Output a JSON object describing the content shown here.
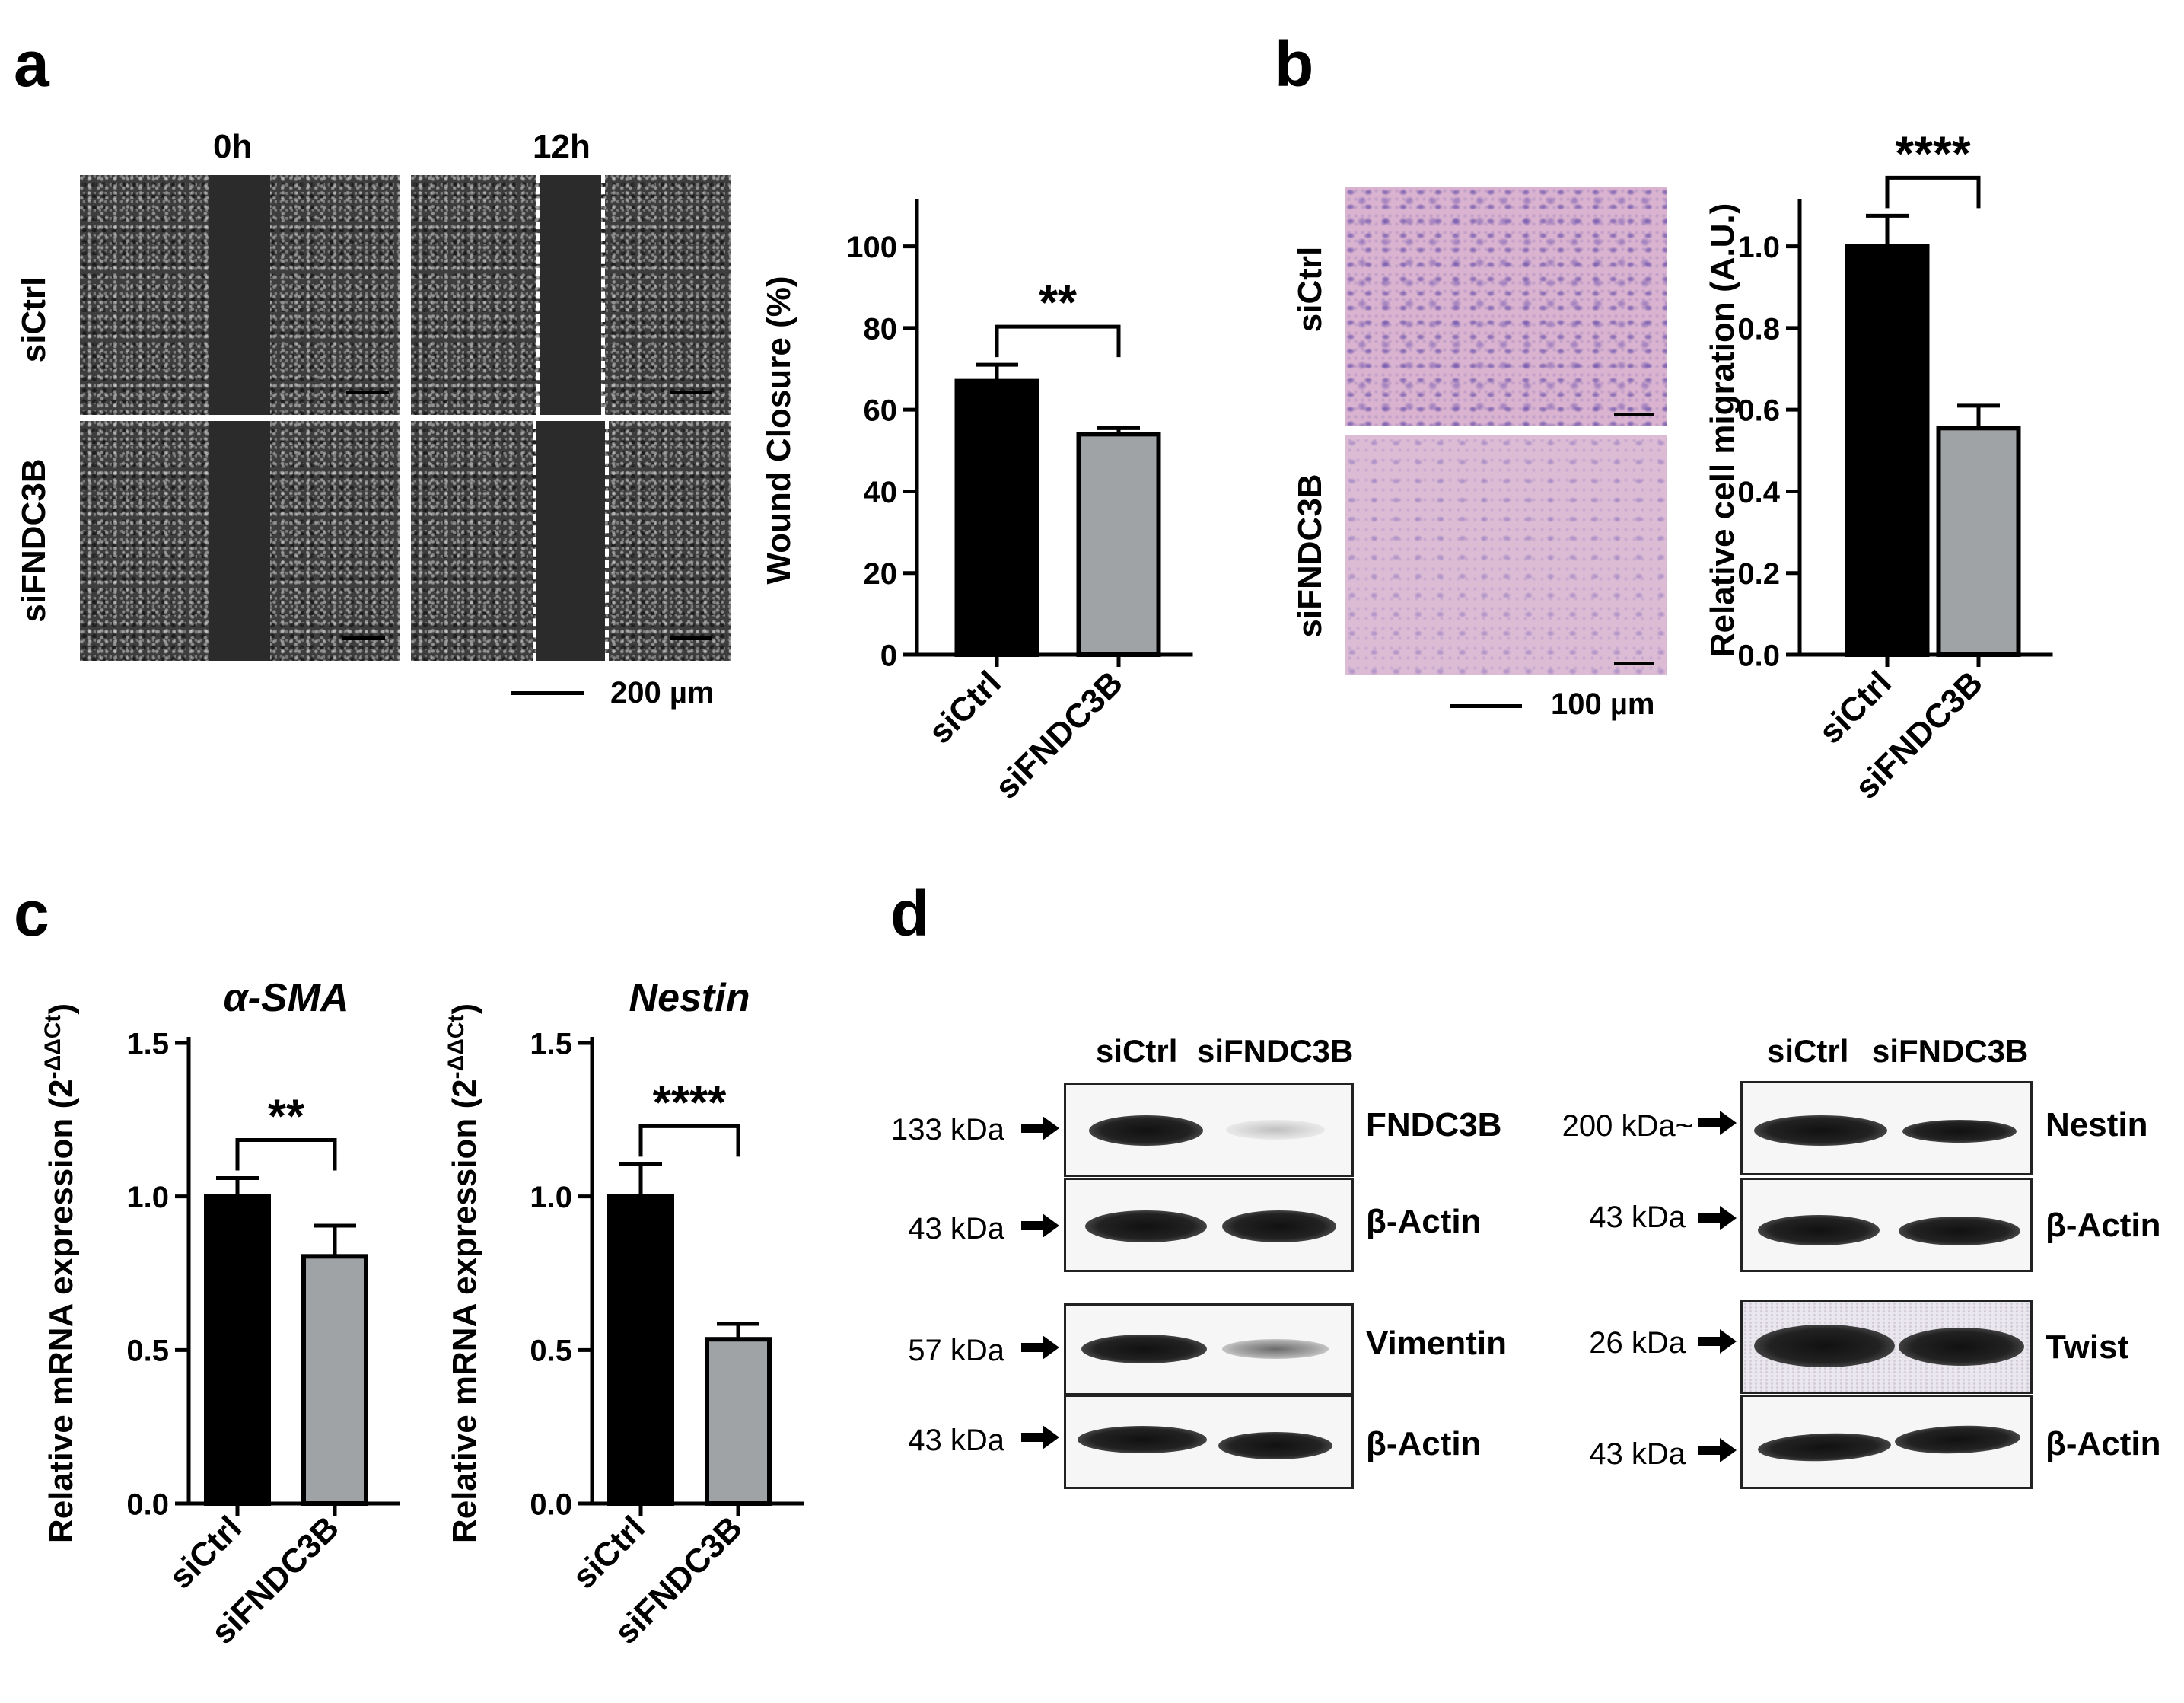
{
  "panels": {
    "a": {
      "letter": "a",
      "time_labels": [
        "0h",
        "12h"
      ],
      "row_labels": [
        "siCtrl",
        "siFNDC3B"
      ],
      "scale_text": "200 µm"
    },
    "b": {
      "letter": "b",
      "row_labels": [
        "siCtrl",
        "siFNDC3B"
      ],
      "scale_text": "100 µm"
    },
    "c": {
      "letter": "c"
    },
    "d": {
      "letter": "d",
      "left_lanes": [
        "siCtrl",
        "siFNDC3B"
      ],
      "right_lanes": [
        "siCtrl",
        "siFNDC3B"
      ],
      "left_blots": [
        {
          "kda": "133 kDa",
          "protein": "FNDC3B",
          "bands": [
            "strong",
            "faint"
          ]
        },
        {
          "kda": "43 kDa",
          "protein": "β-Actin",
          "bands": [
            "strong",
            "strong"
          ]
        },
        {
          "kda": "57 kDa",
          "protein": "Vimentin",
          "bands": [
            "strong",
            "mid"
          ]
        },
        {
          "kda": "43 kDa",
          "protein": "β-Actin",
          "bands": [
            "strong",
            "strong"
          ]
        }
      ],
      "right_blots": [
        {
          "kda": "200 kDa~",
          "protein": "Nestin",
          "bands": [
            "strong",
            "strong"
          ]
        },
        {
          "kda": "43 kDa",
          "protein": "β-Actin",
          "bands": [
            "strong",
            "strong"
          ]
        },
        {
          "kda": "26 kDa",
          "protein": "Twist",
          "bands": [
            "strong",
            "strong"
          ]
        },
        {
          "kda": "43 kDa",
          "protein": "β-Actin",
          "bands": [
            "strong",
            "strong"
          ]
        }
      ]
    }
  },
  "colors": {
    "siCtrl": "#000000",
    "siFNDC3B": "#a0a3a6"
  },
  "chart_data": [
    {
      "id": "a",
      "type": "bar",
      "categories": [
        "siCtrl",
        "siFNDC3B"
      ],
      "values": [
        67,
        54
      ],
      "errors": [
        4,
        1.5
      ],
      "ylabel": "Wound Closure (%)",
      "ylabel_sup": "",
      "title": "",
      "ylim": [
        0,
        110
      ],
      "yticks": [
        0,
        20,
        40,
        60,
        80,
        100
      ],
      "ytick_labels": [
        "0",
        "20",
        "40",
        "60",
        "80",
        "100"
      ],
      "significance": "**"
    },
    {
      "id": "b",
      "type": "bar",
      "categories": [
        "siCtrl",
        "siFNDC3B"
      ],
      "values": [
        1.0,
        0.555
      ],
      "errors": [
        0.075,
        0.055
      ],
      "ylabel": "Relative cell migration (A.U.)",
      "ylabel_sup": "",
      "title": "",
      "ylim": [
        0,
        1.1
      ],
      "yticks": [
        0,
        0.2,
        0.4,
        0.6,
        0.8,
        1.0
      ],
      "ytick_labels": [
        "0.0",
        "0.2",
        "0.4",
        "0.6",
        "0.8",
        "1.0"
      ],
      "significance": "****"
    },
    {
      "id": "c1",
      "type": "bar",
      "categories": [
        "siCtrl",
        "siFNDC3B"
      ],
      "values": [
        1.0,
        0.805
      ],
      "errors": [
        0.06,
        0.1
      ],
      "ylabel": "Relative mRNA expression (2",
      "ylabel_sup": "-ΔΔCt",
      "ylabel_close": ")",
      "title": "α-SMA",
      "ylim": [
        0,
        1.5
      ],
      "yticks": [
        0,
        0.5,
        1.0,
        1.5
      ],
      "ytick_labels": [
        "0.0",
        "0.5",
        "1.0",
        "1.5"
      ],
      "significance": "**"
    },
    {
      "id": "c2",
      "type": "bar",
      "categories": [
        "siCtrl",
        "siFNDC3B"
      ],
      "values": [
        1.0,
        0.535
      ],
      "errors": [
        0.105,
        0.05
      ],
      "ylabel": "Relative mRNA expression (2",
      "ylabel_sup": "-ΔΔCt",
      "ylabel_close": ")",
      "title": "Nestin",
      "ylim": [
        0,
        1.5
      ],
      "yticks": [
        0,
        0.5,
        1.0,
        1.5
      ],
      "ytick_labels": [
        "0.0",
        "0.5",
        "1.0",
        "1.5"
      ],
      "significance": "****"
    }
  ]
}
